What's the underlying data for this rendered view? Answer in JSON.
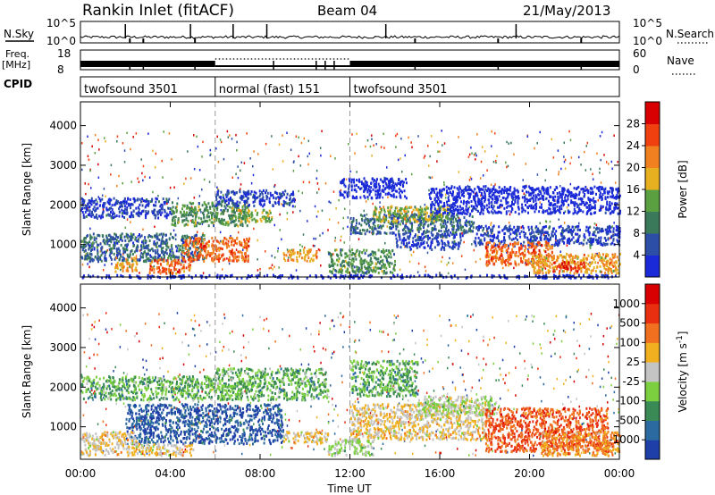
{
  "header": {
    "station": "Rankin Inlet (fitACF)",
    "beam": "Beam 04",
    "date": "21/May/2013"
  },
  "nsky_panel": {
    "left_label": "N.Sky",
    "left_ticks": [
      "10^5",
      "10^0"
    ],
    "right_label": "N.Search",
    "right_ticks": [
      "10^5",
      "10^0"
    ]
  },
  "freq_panel": {
    "left_label_line1": "Freq.",
    "left_label_line2": "[MHz]",
    "left_ticks": [
      "18",
      "8"
    ],
    "right_label": "Nave",
    "right_ticks": [
      "60",
      "0"
    ]
  },
  "cpid_panel": {
    "label": "CPID",
    "segments": [
      {
        "name": "twofsound 3501",
        "start": 0,
        "end": 6
      },
      {
        "name": "normal (fast) 151",
        "start": 6,
        "end": 12
      },
      {
        "name": "twofsound 3501",
        "start": 12,
        "end": 24
      }
    ]
  },
  "chart_data": [
    {
      "type": "heatmap",
      "title": "Power",
      "ylabel": "Slant Range [km]",
      "ylim": [
        180,
        4600
      ],
      "y_ticks": [
        "1000",
        "2000",
        "3000",
        "4000"
      ],
      "colorbar": {
        "label": "Power [dB]",
        "ticks": [
          "4",
          "8",
          "12",
          "16",
          "20",
          "24",
          "28"
        ],
        "colors": [
          "#1a2ad8",
          "#2c4ea6",
          "#3a7a5a",
          "#5aa040",
          "#e6b020",
          "#f08020",
          "#f04010",
          "#d80000"
        ]
      },
      "regions": [
        {
          "t0": 0.0,
          "t1": 24.0,
          "r0": 180,
          "r1": 260,
          "level": 1
        },
        {
          "t0": 0.0,
          "t1": 5.5,
          "r0": 600,
          "r1": 1300,
          "level": 3
        },
        {
          "t0": 1.5,
          "t1": 2.5,
          "r0": 350,
          "r1": 700,
          "level": 6
        },
        {
          "t0": 3.0,
          "t1": 5.0,
          "r0": 300,
          "r1": 650,
          "level": 7
        },
        {
          "t0": 4.5,
          "t1": 7.5,
          "r0": 600,
          "r1": 1200,
          "level": 7
        },
        {
          "t0": 0.0,
          "t1": 4.0,
          "r0": 1700,
          "r1": 2200,
          "level": 2
        },
        {
          "t0": 4.0,
          "t1": 7.5,
          "r0": 1500,
          "r1": 2100,
          "level": 4
        },
        {
          "t0": 7.0,
          "t1": 8.5,
          "r0": 1600,
          "r1": 1900,
          "level": 5
        },
        {
          "t0": 6.0,
          "t1": 9.5,
          "r0": 2000,
          "r1": 2400,
          "level": 2
        },
        {
          "t0": 9.0,
          "t1": 10.5,
          "r0": 600,
          "r1": 900,
          "level": 6
        },
        {
          "t0": 11.0,
          "t1": 14.0,
          "r0": 300,
          "r1": 900,
          "level": 4
        },
        {
          "t0": 12.0,
          "t1": 17.5,
          "r0": 1300,
          "r1": 1800,
          "level": 3
        },
        {
          "t0": 13.0,
          "t1": 16.5,
          "r0": 1600,
          "r1": 2000,
          "level": 5
        },
        {
          "t0": 14.0,
          "t1": 17.0,
          "r0": 900,
          "r1": 1300,
          "level": 2
        },
        {
          "t0": 17.5,
          "t1": 24.0,
          "r0": 1000,
          "r1": 1500,
          "level": 2
        },
        {
          "t0": 18.0,
          "t1": 21.0,
          "r0": 500,
          "r1": 1100,
          "level": 7
        },
        {
          "t0": 20.0,
          "t1": 24.0,
          "r0": 300,
          "r1": 800,
          "level": 6
        },
        {
          "t0": 21.0,
          "t1": 22.5,
          "r0": 350,
          "r1": 600,
          "level": 8
        },
        {
          "t0": 11.5,
          "t1": 14.5,
          "r0": 2200,
          "r1": 2700,
          "level": 1
        },
        {
          "t0": 15.5,
          "t1": 24.0,
          "r0": 1800,
          "r1": 2500,
          "level": 1
        }
      ]
    },
    {
      "type": "heatmap",
      "title": "Velocity",
      "ylabel": "Slant Range [km]",
      "ylim": [
        180,
        4600
      ],
      "y_ticks": [
        "1000",
        "2000",
        "3000",
        "4000"
      ],
      "colorbar": {
        "label": "Velocity [m s^-1]",
        "ticks": [
          "1000",
          "500",
          "100",
          "25",
          "-25",
          "-100",
          "-500",
          "-1000"
        ],
        "colors": [
          "#1f3fa8",
          "#2a6aa0",
          "#3a8a56",
          "#7cd040",
          "#c4c4c4",
          "#f0b020",
          "#f07020",
          "#e83010",
          "#d80000"
        ]
      },
      "regions": [
        {
          "t0": 0.0,
          "t1": 6.0,
          "r0": 1700,
          "r1": 2300,
          "level": 4
        },
        {
          "t0": 6.0,
          "t1": 11.0,
          "r0": 1700,
          "r1": 2500,
          "level": 4
        },
        {
          "t0": 12.0,
          "t1": 15.0,
          "r0": 1800,
          "r1": 2700,
          "level": 4
        },
        {
          "t0": 2.0,
          "t1": 9.0,
          "r0": 600,
          "r1": 1600,
          "level": 2
        },
        {
          "t0": 0.0,
          "t1": 2.5,
          "r0": 300,
          "r1": 900,
          "level": 6
        },
        {
          "t0": 2.5,
          "t1": 5.0,
          "r0": 300,
          "r1": 600,
          "level": 6
        },
        {
          "t0": 12.0,
          "t1": 18.0,
          "r0": 700,
          "r1": 1600,
          "level": 6
        },
        {
          "t0": 15.0,
          "t1": 18.5,
          "r0": 1300,
          "r1": 1800,
          "level": 5
        },
        {
          "t0": 18.0,
          "t1": 23.5,
          "r0": 400,
          "r1": 1500,
          "level": 8
        },
        {
          "t0": 20.5,
          "t1": 24.0,
          "r0": 300,
          "r1": 900,
          "level": 7
        },
        {
          "t0": 9.0,
          "t1": 11.0,
          "r0": 600,
          "r1": 900,
          "level": 6
        },
        {
          "t0": 11.0,
          "t1": 13.0,
          "r0": 300,
          "r1": 700,
          "level": 5
        }
      ]
    }
  ],
  "x_axis": {
    "label": "Time UT",
    "ticks": [
      "00:00",
      "04:00",
      "08:00",
      "12:00",
      "16:00",
      "20:00",
      "00:00"
    ],
    "xlim": [
      0,
      24
    ]
  }
}
